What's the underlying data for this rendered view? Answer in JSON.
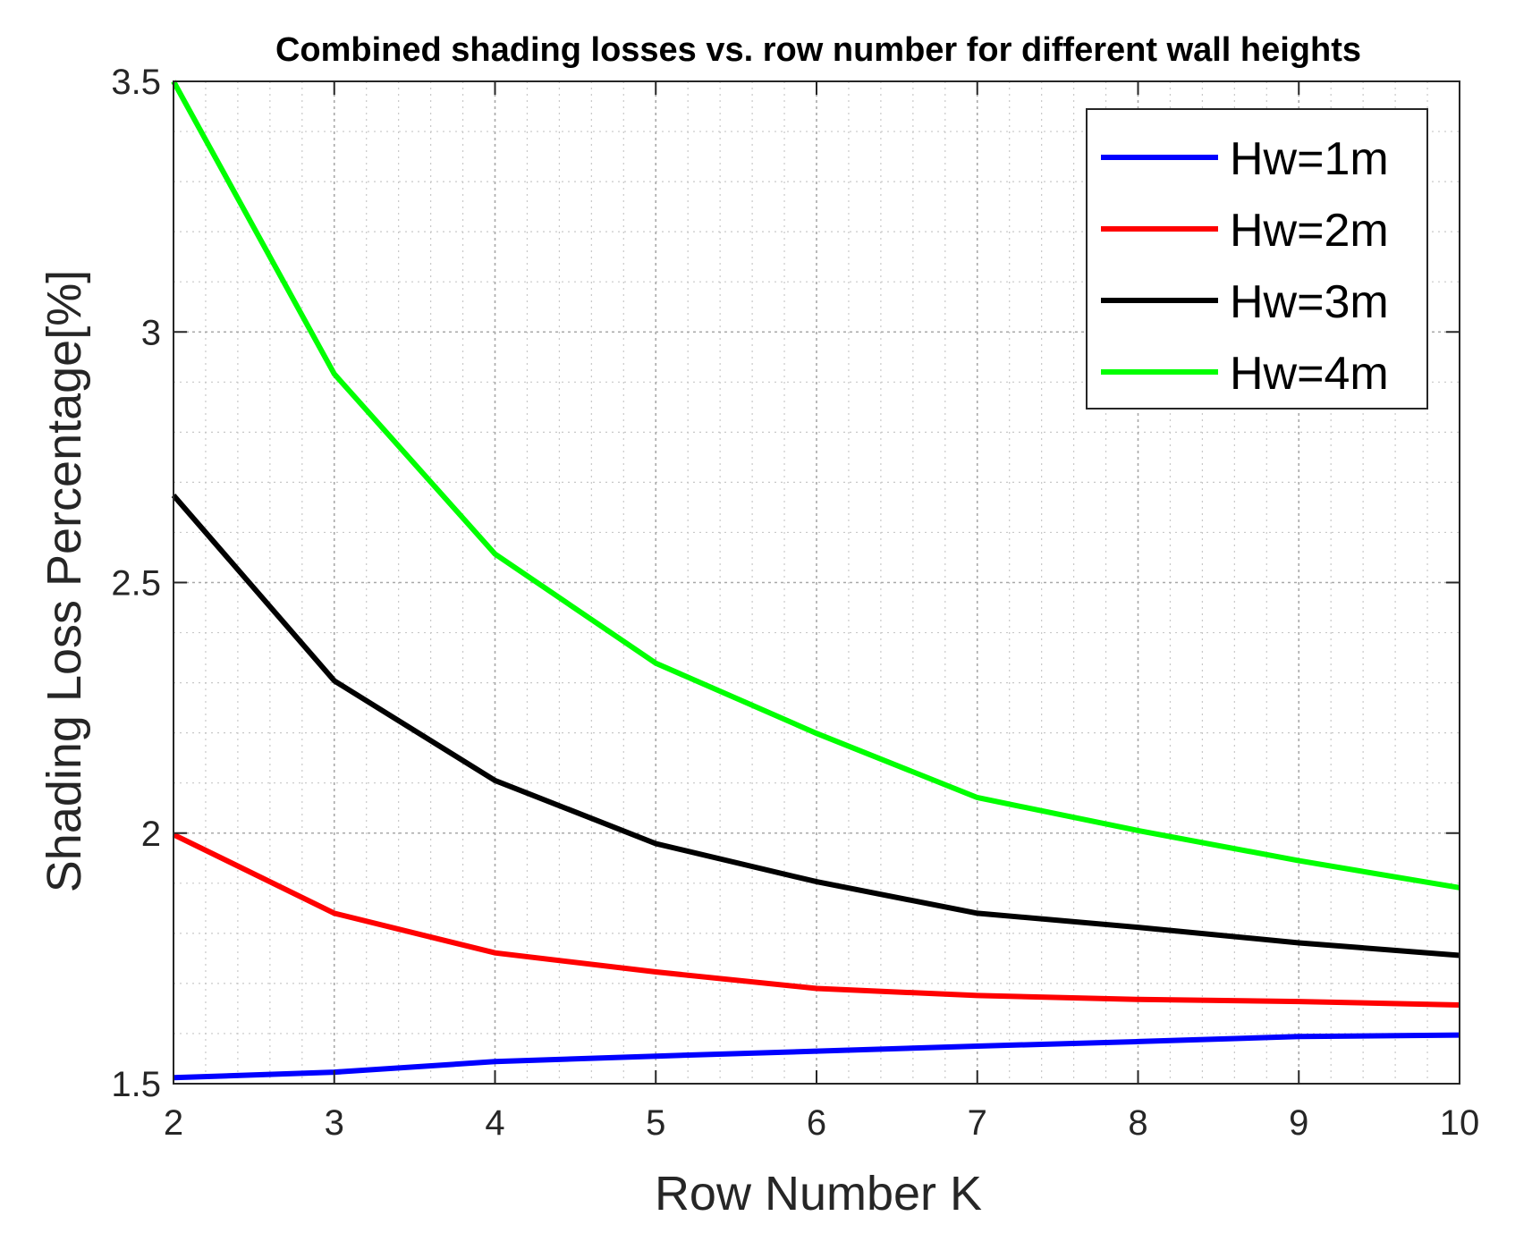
{
  "chart_data": {
    "type": "line",
    "title": "Combined shading losses vs. row number for different wall heights",
    "xlabel": "Row Number K",
    "ylabel": "Shading Loss Percentage[%]",
    "x": [
      2,
      3,
      4,
      5,
      6,
      7,
      8,
      9,
      10
    ],
    "xlim": [
      2,
      10
    ],
    "ylim": [
      1.5,
      3.5
    ],
    "xticks": [
      2,
      3,
      4,
      5,
      6,
      7,
      8,
      9,
      10
    ],
    "yticks": [
      1.5,
      2,
      2.5,
      3,
      3.5
    ],
    "xtick_labels": [
      "2",
      "3",
      "4",
      "5",
      "6",
      "7",
      "8",
      "9",
      "10"
    ],
    "ytick_labels": [
      "1.5",
      "2",
      "2.5",
      "3",
      "3.5"
    ],
    "grid": "major and minor, dotted",
    "legend_position": "top-right",
    "series": [
      {
        "name": "Hw=1m",
        "color": "#0000ff",
        "values": [
          1.512,
          1.523,
          1.544,
          1.555,
          1.565,
          1.575,
          1.584,
          1.594,
          1.597
        ]
      },
      {
        "name": "Hw=2m",
        "color": "#ff0000",
        "values": [
          1.997,
          1.84,
          1.761,
          1.723,
          1.69,
          1.676,
          1.668,
          1.664,
          1.657
        ]
      },
      {
        "name": "Hw=3m",
        "color": "#000000",
        "values": [
          2.674,
          2.304,
          2.105,
          1.979,
          1.903,
          1.84,
          1.812,
          1.781,
          1.756
        ]
      },
      {
        "name": "Hw=4m",
        "color": "#00ff00",
        "values": [
          3.5,
          2.916,
          2.557,
          2.339,
          2.199,
          2.071,
          2.005,
          1.945,
          1.891
        ]
      }
    ]
  }
}
